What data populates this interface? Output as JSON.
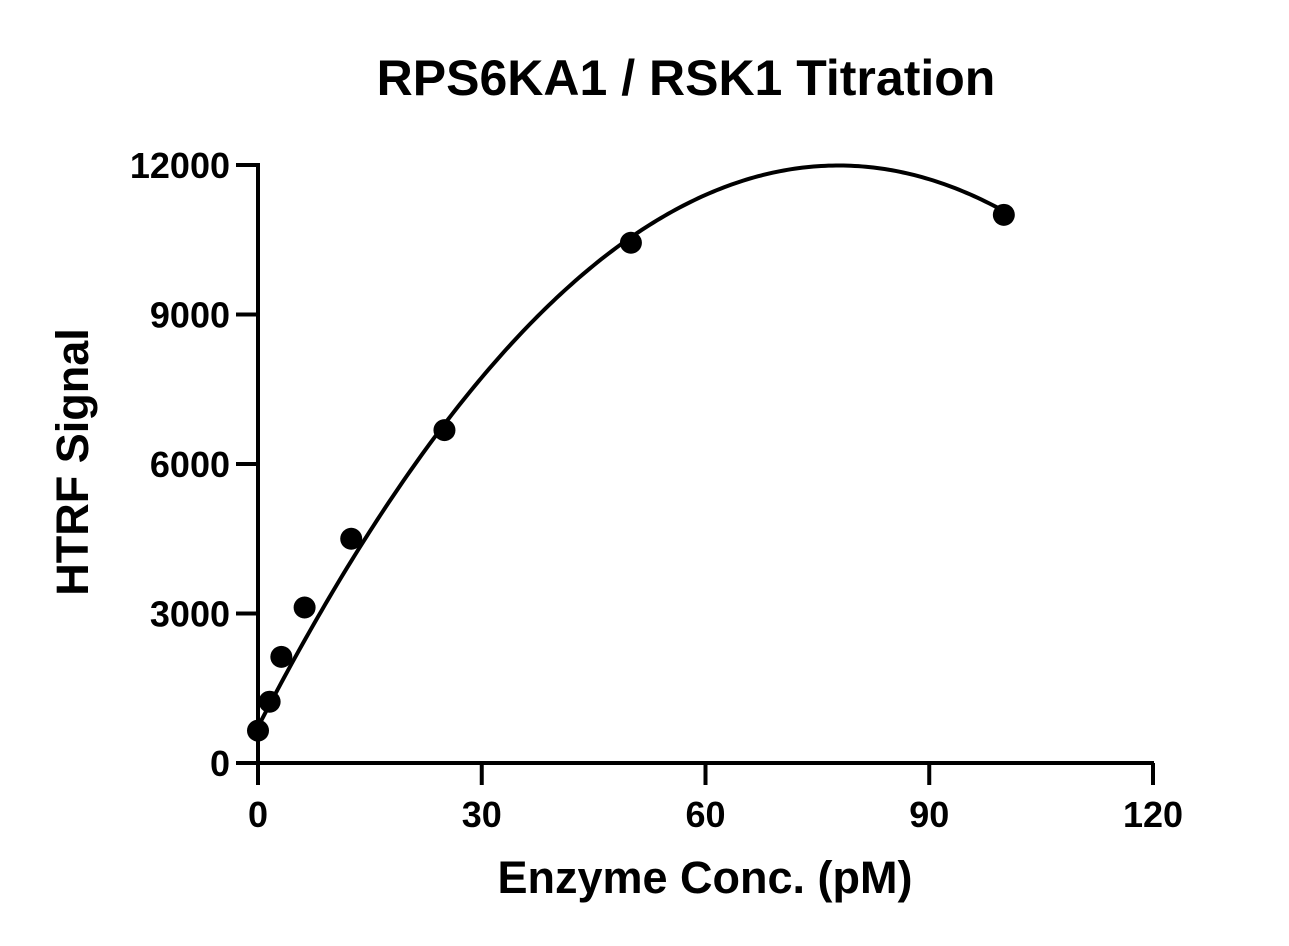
{
  "chart_data": {
    "type": "scatter",
    "title": "RPS6KA1 / RSK1 Titration",
    "xlabel": "Enzyme Conc. (pM)",
    "ylabel": "HTRF Signal",
    "xlim": [
      0,
      120
    ],
    "ylim": [
      0,
      12000
    ],
    "x_ticks": [
      0,
      30,
      60,
      90,
      120
    ],
    "y_ticks": [
      0,
      3000,
      6000,
      9000,
      12000
    ],
    "x_tick_labels": [
      "0",
      "30",
      "60",
      "90",
      "120"
    ],
    "y_tick_labels": [
      "0",
      "3000",
      "6000",
      "9000",
      "12000"
    ],
    "grid": false,
    "legend": "none",
    "marker_color": "#000000",
    "series": [
      {
        "points": [
          {
            "x": 0,
            "y": 650
          },
          {
            "x": 1.56,
            "y": 1230
          },
          {
            "x": 3.13,
            "y": 2130
          },
          {
            "x": 6.25,
            "y": 3120
          },
          {
            "x": 12.5,
            "y": 4500
          },
          {
            "x": 25,
            "y": 6680
          },
          {
            "x": 50,
            "y": 10440
          },
          {
            "x": 100,
            "y": 11000
          }
        ]
      }
    ],
    "fit_curve": {
      "type": "quadratic",
      "points": [
        {
          "x": 0,
          "y": 650
        },
        {
          "x": 25,
          "y": 7000
        },
        {
          "x": 50,
          "y": 10400
        },
        {
          "x": 100,
          "y": 11100
        }
      ]
    }
  }
}
